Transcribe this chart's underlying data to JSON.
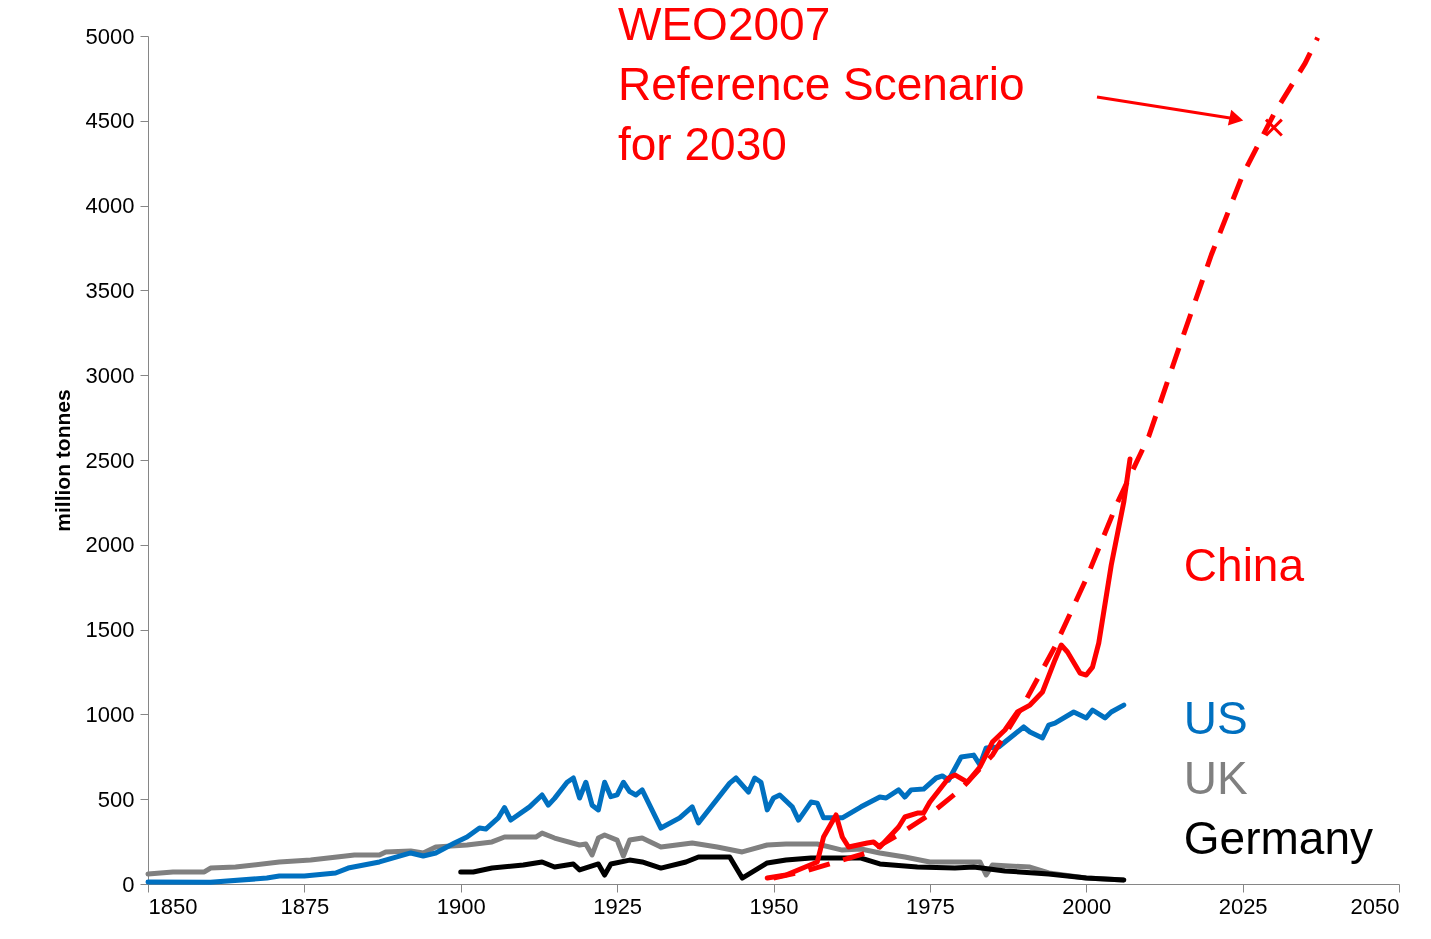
{
  "chart_data": {
    "type": "line",
    "ylabel": "million tonnes",
    "xlim": [
      1850,
      2050
    ],
    "xticks": [
      1850,
      1875,
      1900,
      1925,
      1950,
      1975,
      2000,
      2025,
      2050
    ],
    "ylim": [
      0,
      5000
    ],
    "yticks": [
      0,
      500,
      1000,
      1500,
      2000,
      2500,
      3000,
      3500,
      4000,
      4500,
      5000
    ],
    "grid": false,
    "marker": "none",
    "line_style": "solid",
    "annotations": [
      "WEO2007\nReference Scenario\nfor 2030"
    ],
    "series": [
      {
        "name": "UK",
        "color": "#808080",
        "x": [
          1850,
          1854,
          1859,
          1860,
          1864,
          1871,
          1876,
          1883,
          1887,
          1888,
          1892,
          1894,
          1896,
          1901,
          1905,
          1907,
          1912,
          1913,
          1915,
          1919,
          1920,
          1921,
          1922,
          1923,
          1925,
          1926,
          1927,
          1929,
          1932,
          1937,
          1941,
          1945,
          1949,
          1952,
          1957,
          1961,
          1964,
          1967,
          1971,
          1975,
          1983,
          1984,
          1985,
          1991,
          1994,
          2000,
          2006
        ],
        "values": [
          59,
          71,
          71,
          94,
          100,
          130,
          141,
          171,
          171,
          189,
          195,
          183,
          218,
          230,
          248,
          277,
          277,
          300,
          271,
          230,
          236,
          171,
          271,
          289,
          259,
          165,
          259,
          271,
          218,
          242,
          218,
          189,
          230,
          236,
          236,
          200,
          206,
          183,
          159,
          130,
          130,
          53,
          112,
          100,
          65,
          35,
          24
        ]
      },
      {
        "name": "Germany",
        "color": "#000000",
        "x": [
          1900,
          1902,
          1905,
          1910,
          1913,
          1915,
          1918,
          1919,
          1922,
          1923,
          1924,
          1927,
          1929,
          1932,
          1936,
          1938,
          1943,
          1945,
          1949,
          1952,
          1956,
          1964,
          1967,
          1973,
          1979,
          1982,
          1987,
          1994,
          2000,
          2006
        ],
        "values": [
          71,
          71,
          94,
          112,
          130,
          100,
          118,
          83,
          118,
          53,
          118,
          141,
          130,
          94,
          130,
          159,
          159,
          35,
          124,
          141,
          153,
          153,
          118,
          100,
          94,
          100,
          77,
          59,
          35,
          24
        ]
      },
      {
        "name": "US",
        "color": "#0070c0",
        "x": [
          1850,
          1860,
          1869,
          1871,
          1875,
          1880,
          1882,
          1887,
          1892,
          1894,
          1896,
          1899,
          1901,
          1903,
          1904,
          1906,
          1907,
          1908,
          1911,
          1913,
          1914,
          1915,
          1917,
          1918,
          1919,
          1920,
          1921,
          1922,
          1923,
          1924,
          1925,
          1926,
          1927,
          1928,
          1929,
          1932,
          1935,
          1937,
          1938,
          1943,
          1944,
          1946,
          1947,
          1948,
          1949,
          1950,
          1951,
          1953,
          1954,
          1956,
          1957,
          1958,
          1961,
          1964,
          1967,
          1968,
          1970,
          1971,
          1972,
          1974,
          1976,
          1977,
          1978,
          1980,
          1982,
          1983,
          1984,
          1986,
          1990,
          1991,
          1993,
          1994,
          1995,
          1998,
          2000,
          2001,
          2003,
          2004,
          2006
        ],
        "values": [
          12,
          10,
          35,
          47,
          47,
          65,
          94,
          130,
          183,
          165,
          183,
          242,
          277,
          330,
          324,
          390,
          450,
          377,
          455,
          525,
          465,
          505,
          600,
          625,
          507,
          600,
          465,
          437,
          600,
          515,
          525,
          600,
          545,
          525,
          555,
          330,
          390,
          455,
          360,
          595,
          625,
          542,
          625,
          600,
          437,
          507,
          525,
          455,
          377,
          483,
          477,
          390,
          390,
          455,
          513,
          507,
          555,
          513,
          555,
          560,
          625,
          637,
          613,
          749,
          760,
          702,
          802,
          808,
          926,
          896,
          861,
          937,
          949,
          1014,
          979,
          1026,
          979,
          1014,
          1055
        ]
      },
      {
        "name": "China",
        "color": "#ff0000",
        "x": [
          1949,
          1952,
          1957,
          1958,
          1960,
          1961,
          1962,
          1965,
          1966,
          1967,
          1970,
          1971,
          1973,
          1974,
          1975,
          1978,
          1979,
          1981,
          1983,
          1985,
          1987,
          1989,
          1991,
          1993,
          1995,
          1996,
          1997,
          1999,
          2000,
          2001,
          2002,
          2004,
          2006,
          2007
        ],
        "values": [
          35,
          53,
          130,
          277,
          407,
          277,
          218,
          242,
          248,
          218,
          336,
          395,
          418,
          418,
          483,
          625,
          643,
          601,
          690,
          837,
          908,
          1014,
          1055,
          1132,
          1321,
          1409,
          1368,
          1244,
          1232,
          1279,
          1421,
          1881,
          2252,
          2506
        ]
      },
      {
        "color": "#ff0000",
        "line_style": "dashed",
        "x": [
          1950,
          1955,
          1960,
          1965,
          1970,
          1975,
          1980,
          1985,
          1990,
          1995,
          2000,
          2005,
          2010,
          2015,
          2020,
          2025,
          2030,
          2035,
          2037
        ],
        "values": [
          35,
          75,
          130,
          185,
          290,
          410,
          560,
          760,
          1060,
          1400,
          1800,
          2250,
          2640,
          3180,
          3710,
          4180,
          4540,
          4840,
          4990
        ]
      },
      {
        "type": "scatter",
        "marker": "cross",
        "color": "#ff0000",
        "x": [
          2030
        ],
        "values": [
          4460
        ]
      }
    ]
  }
}
